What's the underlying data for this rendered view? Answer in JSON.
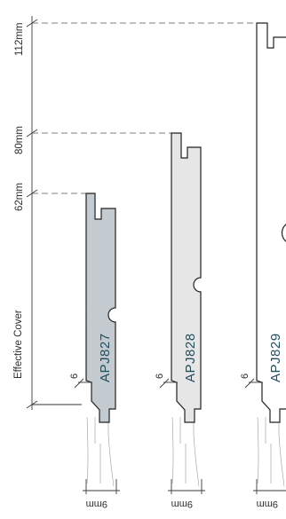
{
  "dimensions": {
    "d112": "112mm",
    "d80": "80mm",
    "d62": "62mm",
    "effective_cover": "Effective Cover"
  },
  "profiles": [
    {
      "code": "APJ827",
      "fill": "#c3cbd1",
      "gap_label": "6",
      "thickness_label": "9mm"
    },
    {
      "code": "APJ828",
      "fill": "#e6e6e6",
      "gap_label": "6",
      "thickness_label": "9mm"
    },
    {
      "code": "APJ829",
      "fill": "#ffffff",
      "gap_label": "6",
      "thickness_label": "9mm"
    }
  ]
}
